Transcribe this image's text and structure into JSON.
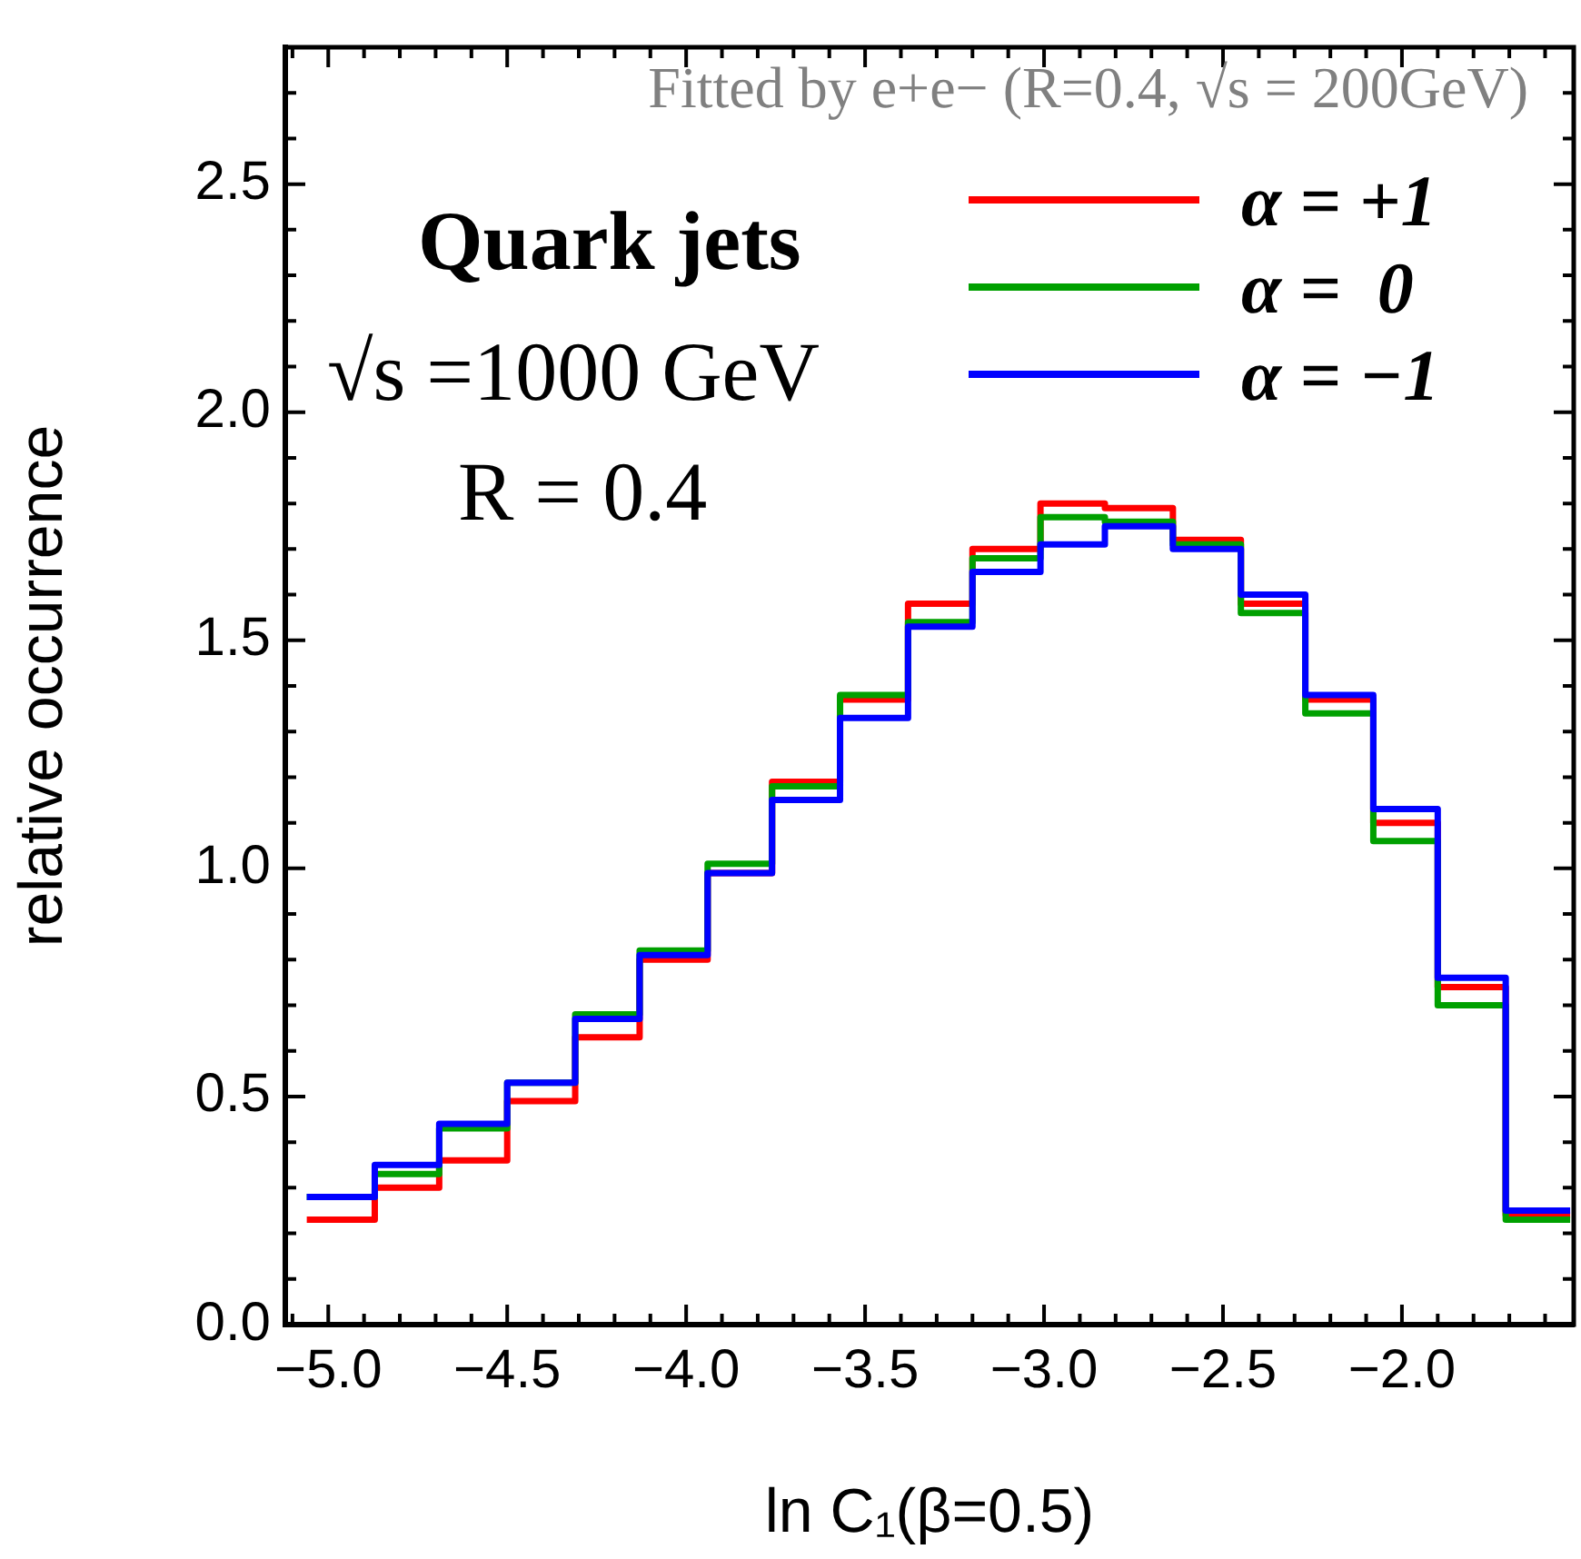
{
  "chart_data": {
    "type": "histogram",
    "xlabel": "ln C₁(β=0.5)",
    "ylabel": "relative occurrence",
    "annotations": [
      "Fitted by e+e− (R=0.4, √s = 200GeV)",
      "Quark jets",
      "√s =1000 GeV",
      "R = 0.4"
    ],
    "bins": [
      -5.06,
      -4.87,
      -4.69,
      -4.5,
      -4.31,
      -4.13,
      -3.94,
      -3.76,
      -3.57,
      -3.38,
      -3.2,
      -3.01,
      -2.83,
      -2.64,
      -2.45,
      -2.27,
      -2.08,
      -1.9,
      -1.71,
      -1.53
    ],
    "series": [
      {
        "name": "α = +1",
        "color": "#ff0000",
        "values": [
          0.23,
          0.3,
          0.36,
          0.49,
          0.63,
          0.8,
          0.99,
          1.19,
          1.37,
          1.58,
          1.7,
          1.8,
          1.79,
          1.72,
          1.58,
          1.37,
          1.1,
          0.74,
          0.24
        ]
      },
      {
        "name": "α =  0",
        "color": "#00a000",
        "values": [
          0.28,
          0.33,
          0.43,
          0.53,
          0.68,
          0.82,
          1.01,
          1.18,
          1.38,
          1.54,
          1.68,
          1.77,
          1.76,
          1.71,
          1.56,
          1.34,
          1.06,
          0.7,
          0.23
        ]
      },
      {
        "name": "α = −1",
        "color": "#0000ff",
        "values": [
          0.28,
          0.35,
          0.44,
          0.53,
          0.67,
          0.81,
          0.99,
          1.15,
          1.33,
          1.53,
          1.65,
          1.71,
          1.75,
          1.7,
          1.6,
          1.38,
          1.13,
          0.76,
          0.25
        ]
      }
    ],
    "xlim": [
      -5.12,
      -1.52
    ],
    "xticks": [
      {
        "value": -5.1,
        "label": null
      },
      {
        "value": -5.0,
        "label": "−5.0"
      },
      {
        "value": -4.9,
        "label": null
      },
      {
        "value": -4.8,
        "label": null
      },
      {
        "value": -4.7,
        "label": null
      },
      {
        "value": -4.6,
        "label": null
      },
      {
        "value": -4.5,
        "label": "−4.5"
      },
      {
        "value": -4.4,
        "label": null
      },
      {
        "value": -4.3,
        "label": null
      },
      {
        "value": -4.2,
        "label": null
      },
      {
        "value": -4.1,
        "label": null
      },
      {
        "value": -4.0,
        "label": "−4.0"
      },
      {
        "value": -3.9,
        "label": null
      },
      {
        "value": -3.8,
        "label": null
      },
      {
        "value": -3.7,
        "label": null
      },
      {
        "value": -3.6,
        "label": null
      },
      {
        "value": -3.5,
        "label": "−3.5"
      },
      {
        "value": -3.4,
        "label": null
      },
      {
        "value": -3.3,
        "label": null
      },
      {
        "value": -3.2,
        "label": null
      },
      {
        "value": -3.1,
        "label": null
      },
      {
        "value": -3.0,
        "label": "−3.0"
      },
      {
        "value": -2.9,
        "label": null
      },
      {
        "value": -2.8,
        "label": null
      },
      {
        "value": -2.7,
        "label": null
      },
      {
        "value": -2.6,
        "label": null
      },
      {
        "value": -2.5,
        "label": "−2.5"
      },
      {
        "value": -2.4,
        "label": null
      },
      {
        "value": -2.3,
        "label": null
      },
      {
        "value": -2.2,
        "label": null
      },
      {
        "value": -2.1,
        "label": null
      },
      {
        "value": -2.0,
        "label": "−2.0"
      },
      {
        "value": -1.9,
        "label": null
      },
      {
        "value": -1.8,
        "label": null
      },
      {
        "value": -1.7,
        "label": null
      },
      {
        "value": -1.6,
        "label": null
      }
    ],
    "ylim": [
      0,
      2.8
    ],
    "yticks": [
      {
        "value": 0,
        "label": "0.0"
      },
      {
        "value": 0.1,
        "label": null
      },
      {
        "value": 0.2,
        "label": null
      },
      {
        "value": 0.3,
        "label": null
      },
      {
        "value": 0.4,
        "label": null
      },
      {
        "value": 0.5,
        "label": "0.5"
      },
      {
        "value": 0.6,
        "label": null
      },
      {
        "value": 0.7,
        "label": null
      },
      {
        "value": 0.8,
        "label": null
      },
      {
        "value": 0.9,
        "label": null
      },
      {
        "value": 1.0,
        "label": "1.0"
      },
      {
        "value": 1.1,
        "label": null
      },
      {
        "value": 1.2,
        "label": null
      },
      {
        "value": 1.3,
        "label": null
      },
      {
        "value": 1.4,
        "label": null
      },
      {
        "value": 1.5,
        "label": "1.5"
      },
      {
        "value": 1.6,
        "label": null
      },
      {
        "value": 1.7,
        "label": null
      },
      {
        "value": 1.8,
        "label": null
      },
      {
        "value": 1.9,
        "label": null
      },
      {
        "value": 2.0,
        "label": "2.0"
      },
      {
        "value": 2.1,
        "label": null
      },
      {
        "value": 2.2,
        "label": null
      },
      {
        "value": 2.3,
        "label": null
      },
      {
        "value": 2.4,
        "label": null
      },
      {
        "value": 2.5,
        "label": "2.5"
      },
      {
        "value": 2.6,
        "label": null
      },
      {
        "value": 2.7,
        "label": null
      }
    ],
    "grid": false,
    "legend": "top right"
  }
}
